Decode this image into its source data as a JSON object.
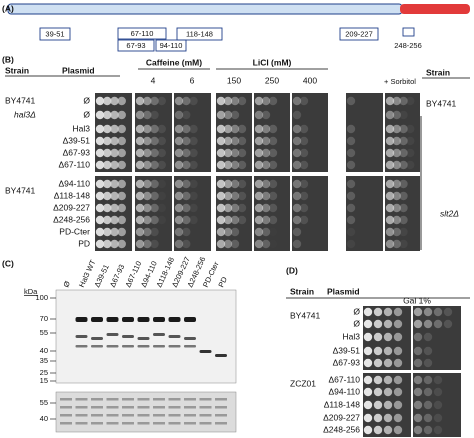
{
  "panel_a": {
    "label": "(A)",
    "regions": [
      "39-51",
      "67-110",
      "118-148",
      "209-227",
      "67-93",
      "94-110",
      "248-256"
    ]
  },
  "panel_b": {
    "label": "(B)",
    "strain_header": "Strain",
    "plasmid_header": "Plasmid",
    "caffeine": {
      "title": "Caffeine (mM)",
      "concentrations": [
        "4",
        "6"
      ]
    },
    "licl": {
      "title": "LiCl (mM)",
      "concentrations": [
        "150",
        "250",
        "400"
      ]
    },
    "sorbitol": "+ Sorbitol",
    "right_strain_header": "Strain",
    "strains_left": [
      "BY4741",
      "hal3Δ",
      "BY4741"
    ],
    "strains_right": [
      "BY4741",
      "slt2Δ"
    ],
    "plasmids": [
      "Ø",
      "Ø",
      "Hal3",
      "Δ39-51",
      "Δ67-93",
      "Δ67-110",
      "Δ94-110",
      "Δ118-148",
      "Δ209-227",
      "Δ248-256",
      "PD-Cter",
      "PD"
    ]
  },
  "panel_c": {
    "label": "(C)",
    "mw_unit": "kDa",
    "lanes": [
      "Ø",
      "Hal3 WT",
      "Δ39-51",
      "Δ67-93",
      "Δ67-110",
      "Δ94-110",
      "Δ118-148",
      "Δ209-227",
      "Δ248-256",
      "PD-Cter",
      "PD"
    ],
    "mw_markers": [
      "100",
      "70",
      "55",
      "40",
      "35",
      "25",
      "15"
    ],
    "loading_markers": [
      "55",
      "40"
    ]
  },
  "panel_d": {
    "label": "(D)",
    "strain_header": "Strain",
    "plasmid_header": "Plasmid",
    "condition": "Gal 1%",
    "strains": [
      "BY4741",
      "ZCZ01"
    ],
    "plasmids": [
      "Ø",
      "Ø",
      "Hal3",
      "Δ39-51",
      "Δ67-93",
      "Δ67-110",
      "Δ94-110",
      "Δ118-148",
      "Δ209-227",
      "Δ248-256"
    ]
  }
}
